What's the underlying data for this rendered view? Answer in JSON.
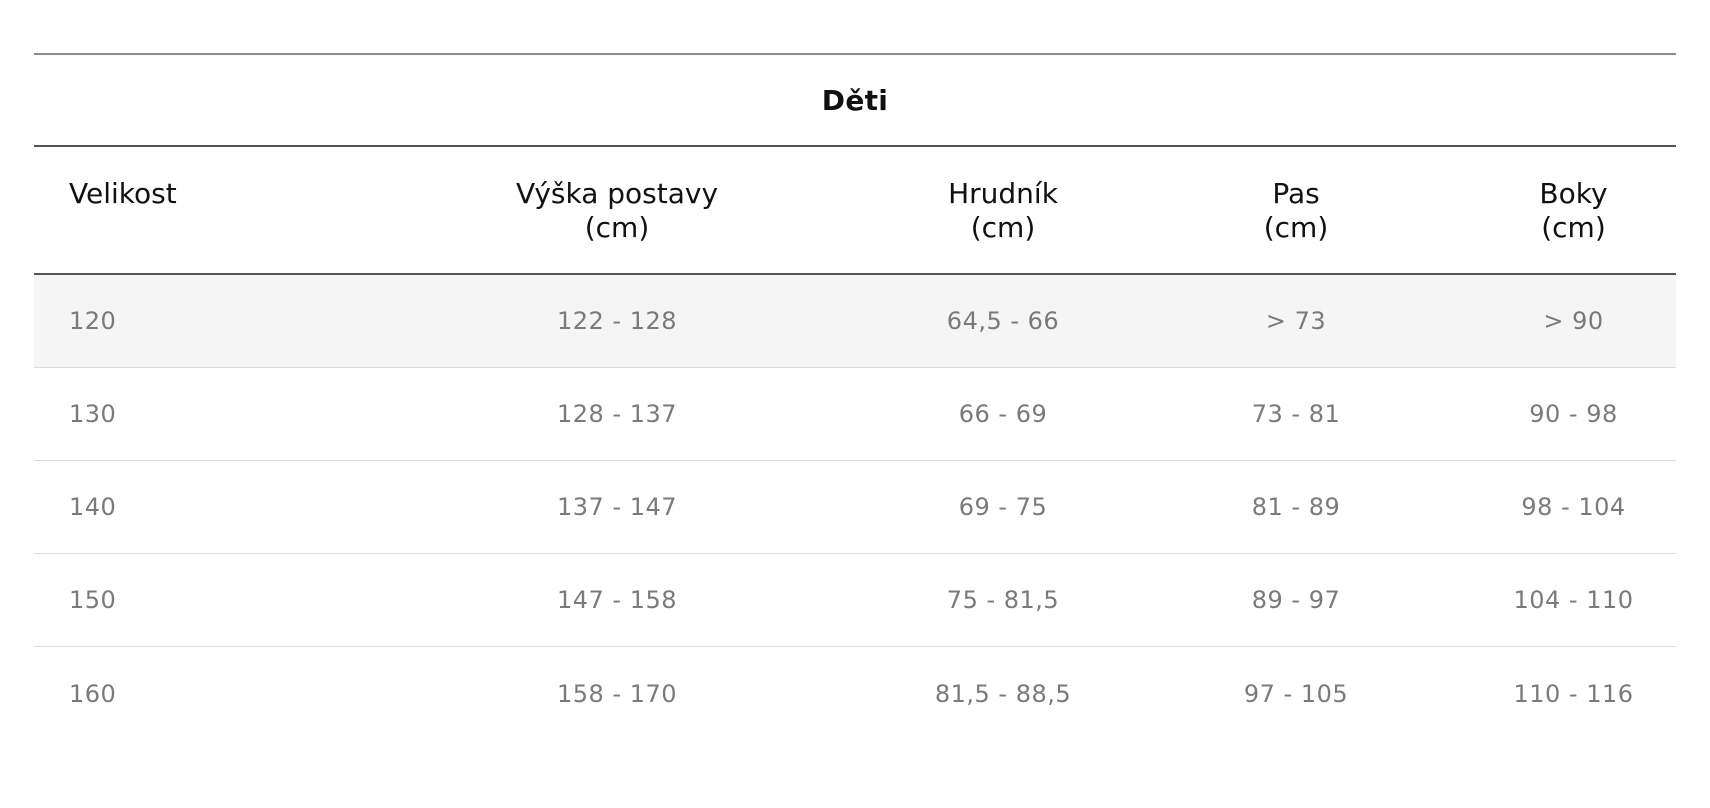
{
  "table": {
    "title": "Děti",
    "columns": [
      {
        "line1": "Velikost",
        "line2": ""
      },
      {
        "line1": "Výška postavy",
        "line2": "(cm)"
      },
      {
        "line1": "Hrudník",
        "line2": "(cm)"
      },
      {
        "line1": "Pas",
        "line2": "(cm)"
      },
      {
        "line1": "Boky",
        "line2": "(cm)"
      }
    ],
    "rows": [
      [
        "120",
        "122 - 128",
        "64,5 - 66",
        "> 73",
        "> 90"
      ],
      [
        "130",
        "128 - 137",
        "66 - 69",
        "73 - 81",
        "90 - 98"
      ],
      [
        "140",
        "137 - 147",
        "69 - 75",
        "81 - 89",
        "98 - 104"
      ],
      [
        "150",
        "147 - 158",
        "75 - 81,5",
        "89 - 97",
        "104 - 110"
      ],
      [
        "160",
        "158 - 170",
        "81,5 - 88,5",
        "97 - 105",
        "110 - 116"
      ]
    ]
  },
  "colors": {
    "header_text": "#111111",
    "cell_text": "#7a7a7a",
    "shaded_row": "#f4f5f4",
    "divider_strong": "#555555",
    "divider_light": "#dcdcdc"
  }
}
